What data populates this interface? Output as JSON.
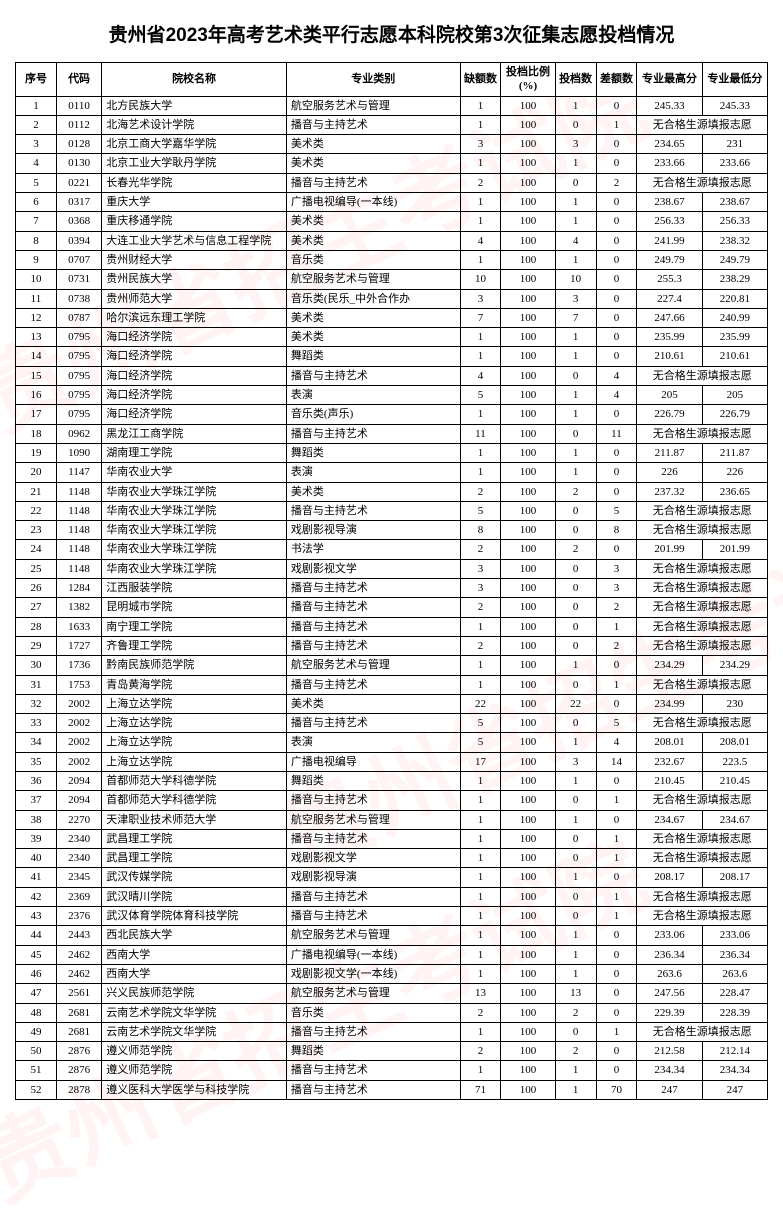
{
  "title": "贵州省2023年高考艺术类平行志愿本科院校第3次征集志愿投档情况",
  "headers": {
    "seq": "序号",
    "code": "代码",
    "school": "院校名称",
    "major": "专业类别",
    "vacancy": "缺额数",
    "ratio": "投档比例(%)",
    "filed": "投档数",
    "diff": "差额数",
    "high": "专业最高分",
    "low": "专业最低分"
  },
  "no_source_text": "无合格生源填报志愿",
  "colors": {
    "border": "#000000",
    "text": "#000000",
    "watermark": "rgba(255,100,100,0.08)"
  },
  "rows": [
    {
      "seq": 1,
      "code": "0110",
      "school": "北方民族大学",
      "major": "航空服务艺术与管理",
      "vacancy": 1,
      "ratio": 100,
      "filed": 1,
      "diff": 0,
      "high": "245.33",
      "low": "245.33"
    },
    {
      "seq": 2,
      "code": "0112",
      "school": "北海艺术设计学院",
      "major": "播音与主持艺术",
      "vacancy": 1,
      "ratio": 100,
      "filed": 0,
      "diff": 1,
      "merged": true
    },
    {
      "seq": 3,
      "code": "0128",
      "school": "北京工商大学嘉华学院",
      "major": "美术类",
      "vacancy": 3,
      "ratio": 100,
      "filed": 3,
      "diff": 0,
      "high": "234.65",
      "low": "231"
    },
    {
      "seq": 4,
      "code": "0130",
      "school": "北京工业大学耿丹学院",
      "major": "美术类",
      "vacancy": 1,
      "ratio": 100,
      "filed": 1,
      "diff": 0,
      "high": "233.66",
      "low": "233.66"
    },
    {
      "seq": 5,
      "code": "0221",
      "school": "长春光华学院",
      "major": "播音与主持艺术",
      "vacancy": 2,
      "ratio": 100,
      "filed": 0,
      "diff": 2,
      "merged": true
    },
    {
      "seq": 6,
      "code": "0317",
      "school": "重庆大学",
      "major": "广播电视编导(一本线)",
      "vacancy": 1,
      "ratio": 100,
      "filed": 1,
      "diff": 0,
      "high": "238.67",
      "low": "238.67"
    },
    {
      "seq": 7,
      "code": "0368",
      "school": "重庆移通学院",
      "major": "美术类",
      "vacancy": 1,
      "ratio": 100,
      "filed": 1,
      "diff": 0,
      "high": "256.33",
      "low": "256.33"
    },
    {
      "seq": 8,
      "code": "0394",
      "school": "大连工业大学艺术与信息工程学院",
      "major": "美术类",
      "vacancy": 4,
      "ratio": 100,
      "filed": 4,
      "diff": 0,
      "high": "241.99",
      "low": "238.32"
    },
    {
      "seq": 9,
      "code": "0707",
      "school": "贵州财经大学",
      "major": "音乐类",
      "vacancy": 1,
      "ratio": 100,
      "filed": 1,
      "diff": 0,
      "high": "249.79",
      "low": "249.79"
    },
    {
      "seq": 10,
      "code": "0731",
      "school": "贵州民族大学",
      "major": "航空服务艺术与管理",
      "vacancy": 10,
      "ratio": 100,
      "filed": 10,
      "diff": 0,
      "high": "255.3",
      "low": "238.29"
    },
    {
      "seq": 11,
      "code": "0738",
      "school": "贵州师范大学",
      "major": "音乐类(民乐_中外合作办",
      "vacancy": 3,
      "ratio": 100,
      "filed": 3,
      "diff": 0,
      "high": "227.4",
      "low": "220.81"
    },
    {
      "seq": 12,
      "code": "0787",
      "school": "哈尔滨远东理工学院",
      "major": "美术类",
      "vacancy": 7,
      "ratio": 100,
      "filed": 7,
      "diff": 0,
      "high": "247.66",
      "low": "240.99"
    },
    {
      "seq": 13,
      "code": "0795",
      "school": "海口经济学院",
      "major": "美术类",
      "vacancy": 1,
      "ratio": 100,
      "filed": 1,
      "diff": 0,
      "high": "235.99",
      "low": "235.99"
    },
    {
      "seq": 14,
      "code": "0795",
      "school": "海口经济学院",
      "major": "舞蹈类",
      "vacancy": 1,
      "ratio": 100,
      "filed": 1,
      "diff": 0,
      "high": "210.61",
      "low": "210.61"
    },
    {
      "seq": 15,
      "code": "0795",
      "school": "海口经济学院",
      "major": "播音与主持艺术",
      "vacancy": 4,
      "ratio": 100,
      "filed": 0,
      "diff": 4,
      "merged": true
    },
    {
      "seq": 16,
      "code": "0795",
      "school": "海口经济学院",
      "major": "表演",
      "vacancy": 5,
      "ratio": 100,
      "filed": 1,
      "diff": 4,
      "high": "205",
      "low": "205"
    },
    {
      "seq": 17,
      "code": "0795",
      "school": "海口经济学院",
      "major": "音乐类(声乐)",
      "vacancy": 1,
      "ratio": 100,
      "filed": 1,
      "diff": 0,
      "high": "226.79",
      "low": "226.79"
    },
    {
      "seq": 18,
      "code": "0962",
      "school": "黑龙江工商学院",
      "major": "播音与主持艺术",
      "vacancy": 11,
      "ratio": 100,
      "filed": 0,
      "diff": 11,
      "merged": true
    },
    {
      "seq": 19,
      "code": "1090",
      "school": "湖南理工学院",
      "major": "舞蹈类",
      "vacancy": 1,
      "ratio": 100,
      "filed": 1,
      "diff": 0,
      "high": "211.87",
      "low": "211.87"
    },
    {
      "seq": 20,
      "code": "1147",
      "school": "华南农业大学",
      "major": "表演",
      "vacancy": 1,
      "ratio": 100,
      "filed": 1,
      "diff": 0,
      "high": "226",
      "low": "226"
    },
    {
      "seq": 21,
      "code": "1148",
      "school": "华南农业大学珠江学院",
      "major": "美术类",
      "vacancy": 2,
      "ratio": 100,
      "filed": 2,
      "diff": 0,
      "high": "237.32",
      "low": "236.65"
    },
    {
      "seq": 22,
      "code": "1148",
      "school": "华南农业大学珠江学院",
      "major": "播音与主持艺术",
      "vacancy": 5,
      "ratio": 100,
      "filed": 0,
      "diff": 5,
      "merged": true
    },
    {
      "seq": 23,
      "code": "1148",
      "school": "华南农业大学珠江学院",
      "major": "戏剧影视导演",
      "vacancy": 8,
      "ratio": 100,
      "filed": 0,
      "diff": 8,
      "merged": true
    },
    {
      "seq": 24,
      "code": "1148",
      "school": "华南农业大学珠江学院",
      "major": "书法学",
      "vacancy": 2,
      "ratio": 100,
      "filed": 2,
      "diff": 0,
      "high": "201.99",
      "low": "201.99"
    },
    {
      "seq": 25,
      "code": "1148",
      "school": "华南农业大学珠江学院",
      "major": "戏剧影视文学",
      "vacancy": 3,
      "ratio": 100,
      "filed": 0,
      "diff": 3,
      "merged": true
    },
    {
      "seq": 26,
      "code": "1284",
      "school": "江西服装学院",
      "major": "播音与主持艺术",
      "vacancy": 3,
      "ratio": 100,
      "filed": 0,
      "diff": 3,
      "merged": true
    },
    {
      "seq": 27,
      "code": "1382",
      "school": "昆明城市学院",
      "major": "播音与主持艺术",
      "vacancy": 2,
      "ratio": 100,
      "filed": 0,
      "diff": 2,
      "merged": true
    },
    {
      "seq": 28,
      "code": "1633",
      "school": "南宁理工学院",
      "major": "播音与主持艺术",
      "vacancy": 1,
      "ratio": 100,
      "filed": 0,
      "diff": 1,
      "merged": true
    },
    {
      "seq": 29,
      "code": "1727",
      "school": "齐鲁理工学院",
      "major": "播音与主持艺术",
      "vacancy": 2,
      "ratio": 100,
      "filed": 0,
      "diff": 2,
      "merged": true
    },
    {
      "seq": 30,
      "code": "1736",
      "school": "黔南民族师范学院",
      "major": "航空服务艺术与管理",
      "vacancy": 1,
      "ratio": 100,
      "filed": 1,
      "diff": 0,
      "high": "234.29",
      "low": "234.29"
    },
    {
      "seq": 31,
      "code": "1753",
      "school": "青岛黄海学院",
      "major": "播音与主持艺术",
      "vacancy": 1,
      "ratio": 100,
      "filed": 0,
      "diff": 1,
      "merged": true
    },
    {
      "seq": 32,
      "code": "2002",
      "school": "上海立达学院",
      "major": "美术类",
      "vacancy": 22,
      "ratio": 100,
      "filed": 22,
      "diff": 0,
      "high": "234.99",
      "low": "230"
    },
    {
      "seq": 33,
      "code": "2002",
      "school": "上海立达学院",
      "major": "播音与主持艺术",
      "vacancy": 5,
      "ratio": 100,
      "filed": 0,
      "diff": 5,
      "merged": true
    },
    {
      "seq": 34,
      "code": "2002",
      "school": "上海立达学院",
      "major": "表演",
      "vacancy": 5,
      "ratio": 100,
      "filed": 1,
      "diff": 4,
      "high": "208.01",
      "low": "208.01"
    },
    {
      "seq": 35,
      "code": "2002",
      "school": "上海立达学院",
      "major": "广播电视编导",
      "vacancy": 17,
      "ratio": 100,
      "filed": 3,
      "diff": 14,
      "high": "232.67",
      "low": "223.5"
    },
    {
      "seq": 36,
      "code": "2094",
      "school": "首都师范大学科德学院",
      "major": "舞蹈类",
      "vacancy": 1,
      "ratio": 100,
      "filed": 1,
      "diff": 0,
      "high": "210.45",
      "low": "210.45"
    },
    {
      "seq": 37,
      "code": "2094",
      "school": "首都师范大学科德学院",
      "major": "播音与主持艺术",
      "vacancy": 1,
      "ratio": 100,
      "filed": 0,
      "diff": 1,
      "merged": true
    },
    {
      "seq": 38,
      "code": "2270",
      "school": "天津职业技术师范大学",
      "major": "航空服务艺术与管理",
      "vacancy": 1,
      "ratio": 100,
      "filed": 1,
      "diff": 0,
      "high": "234.67",
      "low": "234.67"
    },
    {
      "seq": 39,
      "code": "2340",
      "school": "武昌理工学院",
      "major": "播音与主持艺术",
      "vacancy": 1,
      "ratio": 100,
      "filed": 0,
      "diff": 1,
      "merged": true
    },
    {
      "seq": 40,
      "code": "2340",
      "school": "武昌理工学院",
      "major": "戏剧影视文学",
      "vacancy": 1,
      "ratio": 100,
      "filed": 0,
      "diff": 1,
      "merged": true
    },
    {
      "seq": 41,
      "code": "2345",
      "school": "武汉传媒学院",
      "major": "戏剧影视导演",
      "vacancy": 1,
      "ratio": 100,
      "filed": 1,
      "diff": 0,
      "high": "208.17",
      "low": "208.17"
    },
    {
      "seq": 42,
      "code": "2369",
      "school": "武汉晴川学院",
      "major": "播音与主持艺术",
      "vacancy": 1,
      "ratio": 100,
      "filed": 0,
      "diff": 1,
      "merged": true
    },
    {
      "seq": 43,
      "code": "2376",
      "school": "武汉体育学院体育科技学院",
      "major": "播音与主持艺术",
      "vacancy": 1,
      "ratio": 100,
      "filed": 0,
      "diff": 1,
      "merged": true
    },
    {
      "seq": 44,
      "code": "2443",
      "school": "西北民族大学",
      "major": "航空服务艺术与管理",
      "vacancy": 1,
      "ratio": 100,
      "filed": 1,
      "diff": 0,
      "high": "233.06",
      "low": "233.06"
    },
    {
      "seq": 45,
      "code": "2462",
      "school": "西南大学",
      "major": "广播电视编导(一本线)",
      "vacancy": 1,
      "ratio": 100,
      "filed": 1,
      "diff": 0,
      "high": "236.34",
      "low": "236.34"
    },
    {
      "seq": 46,
      "code": "2462",
      "school": "西南大学",
      "major": "戏剧影视文学(一本线)",
      "vacancy": 1,
      "ratio": 100,
      "filed": 1,
      "diff": 0,
      "high": "263.6",
      "low": "263.6"
    },
    {
      "seq": 47,
      "code": "2561",
      "school": "兴义民族师范学院",
      "major": "航空服务艺术与管理",
      "vacancy": 13,
      "ratio": 100,
      "filed": 13,
      "diff": 0,
      "high": "247.56",
      "low": "228.47"
    },
    {
      "seq": 48,
      "code": "2681",
      "school": "云南艺术学院文华学院",
      "major": "音乐类",
      "vacancy": 2,
      "ratio": 100,
      "filed": 2,
      "diff": 0,
      "high": "229.39",
      "low": "228.39"
    },
    {
      "seq": 49,
      "code": "2681",
      "school": "云南艺术学院文华学院",
      "major": "播音与主持艺术",
      "vacancy": 1,
      "ratio": 100,
      "filed": 0,
      "diff": 1,
      "merged": true
    },
    {
      "seq": 50,
      "code": "2876",
      "school": "遵义师范学院",
      "major": "舞蹈类",
      "vacancy": 2,
      "ratio": 100,
      "filed": 2,
      "diff": 0,
      "high": "212.58",
      "low": "212.14"
    },
    {
      "seq": 51,
      "code": "2876",
      "school": "遵义师范学院",
      "major": "播音与主持艺术",
      "vacancy": 1,
      "ratio": 100,
      "filed": 1,
      "diff": 0,
      "high": "234.34",
      "low": "234.34"
    },
    {
      "seq": 52,
      "code": "2878",
      "school": "遵义医科大学医学与科技学院",
      "major": "播音与主持艺术",
      "vacancy": 71,
      "ratio": 100,
      "filed": 1,
      "diff": 70,
      "high": "247",
      "low": "247"
    }
  ]
}
